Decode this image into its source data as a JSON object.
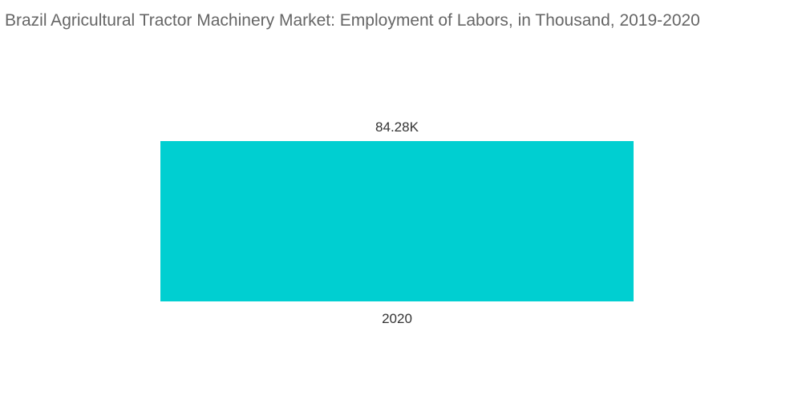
{
  "chart_data": {
    "type": "bar",
    "title": "Brazil Agricultural Tractor Machinery Market: Employment of Labors, in Thousand, 2019-2020",
    "categories": [
      "2020"
    ],
    "values": [
      84.28
    ],
    "data_labels": [
      "84.28K"
    ],
    "xlabel": "",
    "ylabel": "",
    "ylim": [
      0,
      84.28
    ],
    "grid": false,
    "legend": "none",
    "bar_color": "#00cfd1"
  }
}
